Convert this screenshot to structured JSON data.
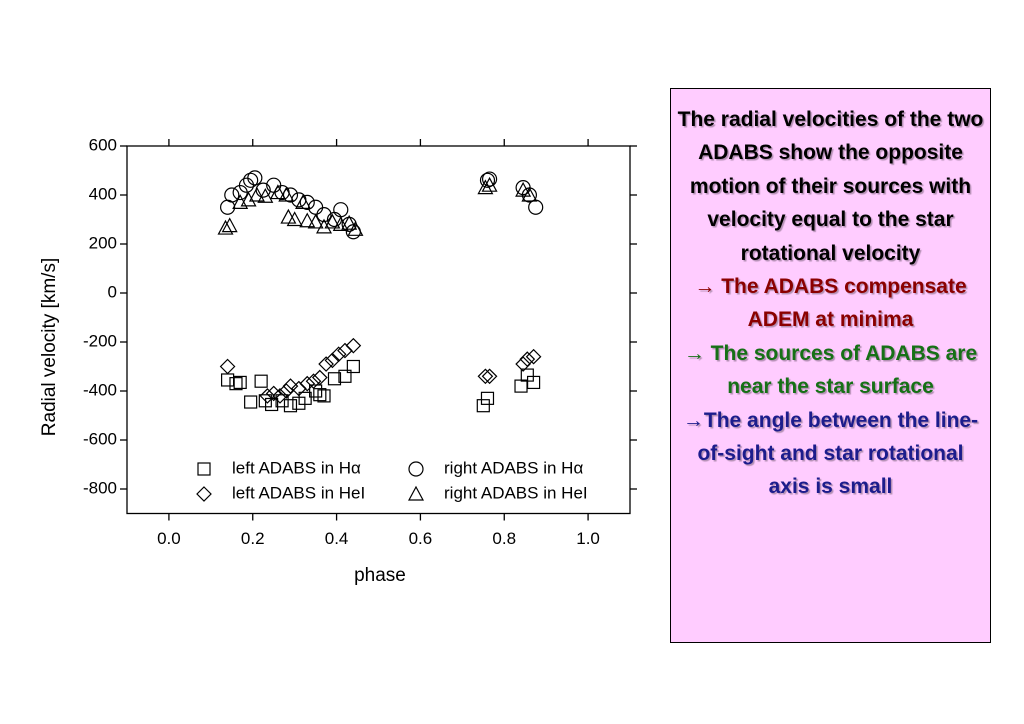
{
  "chart_data": {
    "type": "scatter",
    "xlabel": "phase",
    "ylabel": "Radial velocity [km/s]",
    "xlim": [
      -0.1,
      1.1
    ],
    "ylim": [
      -900,
      600
    ],
    "xticks": [
      {
        "value": 0,
        "label": "0.0"
      },
      0.2,
      0.4,
      0.6,
      0.8,
      {
        "value": 1,
        "label": "1.0"
      }
    ],
    "yticks": [
      600,
      400,
      200,
      0,
      -200,
      -400,
      -600,
      -800
    ],
    "series": [
      {
        "name": "left ADABS in Hα",
        "marker": "square",
        "color": "#000000",
        "x": [
          0.14,
          0.16,
          0.17,
          0.195,
          0.22,
          0.23,
          0.245,
          0.27,
          0.29,
          0.31,
          0.325,
          0.35,
          0.36,
          0.37,
          0.395,
          0.42,
          0.44,
          0.75,
          0.76,
          0.84,
          0.855,
          0.87
        ],
        "values": [
          -355,
          -370,
          -365,
          -445,
          -360,
          -440,
          -455,
          -440,
          -460,
          -450,
          -430,
          -400,
          -415,
          -420,
          -350,
          -340,
          -300,
          -460,
          -430,
          -380,
          -335,
          -365
        ]
      },
      {
        "name": "left ADABS in HeI",
        "marker": "diamond",
        "color": "#000000",
        "x": [
          0.14,
          0.235,
          0.25,
          0.265,
          0.28,
          0.29,
          0.31,
          0.33,
          0.345,
          0.36,
          0.375,
          0.39,
          0.405,
          0.42,
          0.44,
          0.755,
          0.765,
          0.845,
          0.855,
          0.87
        ],
        "values": [
          -300,
          -420,
          -410,
          -420,
          -400,
          -380,
          -390,
          -370,
          -360,
          -345,
          -290,
          -275,
          -250,
          -235,
          -215,
          -340,
          -340,
          -290,
          -270,
          -260
        ]
      },
      {
        "name": "right ADABS in Hα",
        "marker": "circle",
        "color": "#000000",
        "x": [
          0.14,
          0.15,
          0.17,
          0.185,
          0.195,
          0.205,
          0.225,
          0.25,
          0.27,
          0.29,
          0.31,
          0.33,
          0.35,
          0.37,
          0.395,
          0.41,
          0.43,
          0.44,
          0.76,
          0.765,
          0.845,
          0.86,
          0.875
        ],
        "values": [
          350,
          400,
          410,
          440,
          460,
          470,
          420,
          440,
          410,
          400,
          380,
          370,
          350,
          320,
          300,
          340,
          280,
          250,
          460,
          465,
          430,
          400,
          350
        ]
      },
      {
        "name": "right ADABS in HeI",
        "marker": "triangle",
        "color": "#000000",
        "x": [
          0.135,
          0.145,
          0.17,
          0.19,
          0.21,
          0.23,
          0.26,
          0.28,
          0.285,
          0.3,
          0.32,
          0.33,
          0.35,
          0.37,
          0.39,
          0.41,
          0.43,
          0.445,
          0.755,
          0.765,
          0.845,
          0.86
        ],
        "values": [
          265,
          275,
          370,
          380,
          400,
          395,
          410,
          400,
          310,
          300,
          370,
          295,
          290,
          270,
          290,
          280,
          285,
          260,
          430,
          440,
          420,
          400
        ]
      }
    ]
  },
  "text_box": {
    "background": "#ffccff",
    "paragraphs": [
      {
        "text": "The radial velocities of the two ADABS show the opposite motion of their sources with velocity equal to the star rotational velocity",
        "color": "#000000"
      },
      {
        "text": "→ The ADABS compensate ADEM at minima",
        "color": "#8b0000"
      },
      {
        "text": "→ The sources of ADABS are near the star surface",
        "color": "#167016"
      },
      {
        "text": "→The angle between the line-of-sight and star rotational axis is small",
        "color": "#1c1c8c"
      }
    ]
  }
}
